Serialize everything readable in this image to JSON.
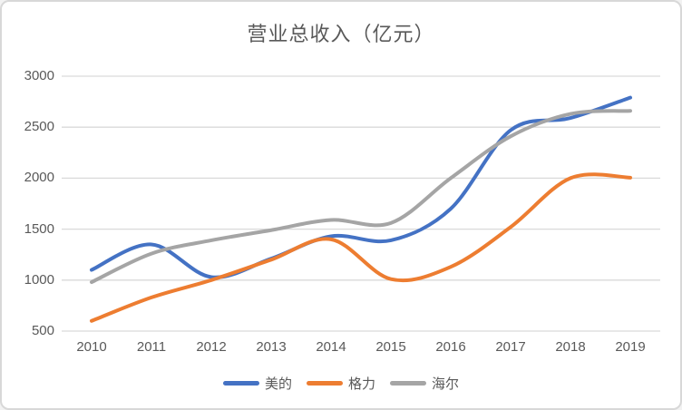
{
  "title": "营业总收入（亿元）",
  "colors": {
    "series_blue": "#4472C4",
    "series_orange": "#ED7D31",
    "series_gray": "#A5A5A5",
    "gridline": "#D9D9D9",
    "text": "#595959",
    "card_border": "#D8D8D8",
    "background": "#FFFFFF"
  },
  "chart_data": {
    "type": "line",
    "smooth": true,
    "title": "营业总收入（亿元）",
    "xlabel": "",
    "ylabel": "",
    "categories": [
      "2010",
      "2011",
      "2012",
      "2013",
      "2014",
      "2015",
      "2016",
      "2017",
      "2018",
      "2019"
    ],
    "series": [
      {
        "name": "美的",
        "color": "#4472C4",
        "values": [
          1100,
          1350,
          1030,
          1210,
          1430,
          1390,
          1700,
          2470,
          2590,
          2790
        ]
      },
      {
        "name": "格力",
        "color": "#ED7D31",
        "values": [
          600,
          830,
          1000,
          1200,
          1400,
          1010,
          1130,
          1520,
          2000,
          2005
        ]
      },
      {
        "name": "海尔",
        "color": "#A5A5A5",
        "values": [
          980,
          1260,
          1390,
          1490,
          1590,
          1560,
          2000,
          2410,
          2630,
          2660
        ]
      }
    ],
    "ylim": [
      500,
      3000
    ],
    "yticks": [
      3000,
      2500,
      2000,
      1500,
      1000,
      500
    ],
    "grid": "horizontal-only",
    "legend_position": "bottom-center",
    "line_width": 4
  }
}
